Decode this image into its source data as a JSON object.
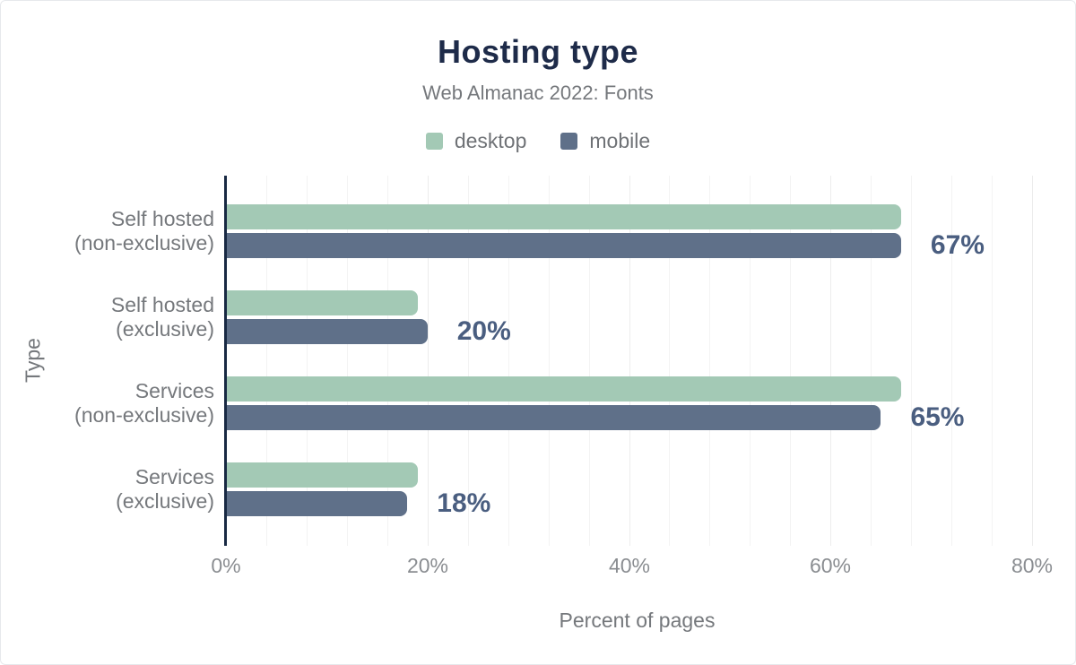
{
  "header": {
    "title": "Hosting type",
    "subtitle": "Web Almanac 2022: Fonts"
  },
  "legend": [
    {
      "label": "desktop",
      "color": "#a3c9b5"
    },
    {
      "label": "mobile",
      "color": "#5f7089"
    }
  ],
  "colors": {
    "desktop_bar": "#a3c9b5",
    "mobile_bar": "#5f7089",
    "title_navy": "#1e2b49",
    "axis_line_navy": "#182943",
    "value_label": "#4a5e80",
    "text_gray": "#75787c",
    "tick_gray": "#8a8d91",
    "gridline_minor": "#f3f3f3",
    "gridline_major": "#ececec"
  },
  "chart_data": {
    "type": "bar",
    "orientation": "horizontal",
    "title": "Hosting type",
    "subtitle": "Web Almanac 2022: Fonts",
    "xlabel": "Percent of pages",
    "ylabel": "Type",
    "xlim": [
      0,
      80
    ],
    "x_ticks": [
      "0%",
      "20%",
      "40%",
      "60%",
      "80%"
    ],
    "grid": "faint vertical minor gridlines every 4%, majors every 20%",
    "legend_position": "top-center",
    "categories": [
      "Self hosted (non-exclusive)",
      "Self hosted (exclusive)",
      "Services (non-exclusive)",
      "Services (exclusive)"
    ],
    "category_lines": [
      [
        "Self hosted",
        "(non-exclusive)"
      ],
      [
        "Self hosted",
        "(exclusive)"
      ],
      [
        "Services",
        "(non-exclusive)"
      ],
      [
        "Services",
        "(exclusive)"
      ]
    ],
    "series": [
      {
        "name": "desktop",
        "values": [
          67,
          19,
          67,
          19
        ]
      },
      {
        "name": "mobile",
        "values": [
          67,
          20,
          65,
          18
        ]
      }
    ],
    "value_labels": [
      "67%",
      "20%",
      "65%",
      "18%"
    ]
  }
}
